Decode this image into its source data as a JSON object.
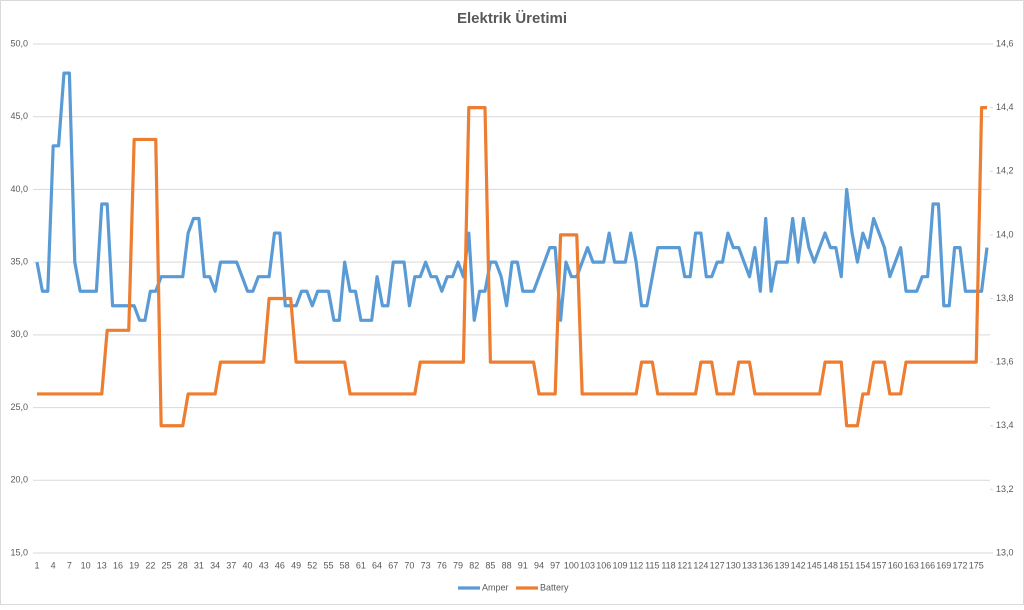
{
  "chart_data": {
    "type": "line",
    "title": "Elektrik Üretimi",
    "categories": [
      1,
      null,
      null,
      4,
      null,
      null,
      7,
      null,
      null,
      10,
      null,
      null,
      13,
      null,
      null,
      16,
      null,
      null,
      19,
      null,
      null,
      22,
      null,
      null,
      25,
      null,
      null,
      28,
      null,
      null,
      31,
      null,
      null,
      34,
      null,
      null,
      37,
      null,
      null,
      40,
      null,
      null,
      43,
      null,
      null,
      46,
      null,
      null,
      49,
      null,
      null,
      52,
      null,
      null,
      55,
      null,
      null,
      58,
      null,
      null,
      61,
      null,
      null,
      64,
      null,
      null,
      67,
      null,
      null,
      70,
      null,
      null,
      73,
      null,
      null,
      76,
      null,
      null,
      79,
      null,
      null,
      82,
      null,
      null,
      85,
      null,
      null,
      88,
      null,
      null,
      91,
      null,
      null,
      94,
      null,
      null,
      97,
      null,
      null,
      100,
      null,
      null,
      103,
      null,
      null,
      106,
      null,
      null,
      109,
      null,
      null,
      112,
      null,
      null,
      115,
      null,
      null,
      118,
      null,
      null,
      121,
      null,
      null,
      124,
      null,
      null,
      127,
      null,
      null,
      130,
      null,
      null,
      133,
      null,
      null,
      136,
      null,
      null,
      139,
      null,
      null,
      142,
      null,
      null,
      145,
      null,
      null,
      148,
      null,
      null,
      151,
      null,
      null,
      154,
      null,
      null,
      157,
      null,
      null,
      160,
      null,
      null,
      163,
      null,
      null,
      166,
      null,
      null,
      169,
      null,
      null,
      172,
      null,
      null,
      175,
      null,
      null
    ],
    "series": [
      {
        "name": "Amper",
        "color": "#5b9bd5",
        "axis": "y",
        "values": [
          35,
          33,
          33,
          43,
          43,
          48,
          48,
          35,
          33,
          33,
          33,
          33,
          39,
          39,
          32,
          32,
          32,
          32,
          32,
          31,
          31,
          33,
          33,
          34,
          34,
          34,
          34,
          34,
          37,
          38,
          38,
          34,
          34,
          33,
          35,
          35,
          35,
          35,
          34,
          33,
          33,
          34,
          34,
          34,
          37,
          37,
          32,
          32,
          32,
          33,
          33,
          32,
          33,
          33,
          33,
          31,
          31,
          35,
          33,
          33,
          31,
          31,
          31,
          34,
          32,
          32,
          35,
          35,
          35,
          32,
          34,
          34,
          35,
          34,
          34,
          33,
          34,
          34,
          35,
          34,
          37,
          31,
          33,
          33,
          35,
          35,
          34,
          32,
          35,
          35,
          33,
          33,
          33,
          34,
          35,
          36,
          36,
          31,
          35,
          34,
          34,
          35,
          36,
          35,
          35,
          35,
          37,
          35,
          35,
          35,
          37,
          35,
          32,
          32,
          34,
          36,
          36,
          36,
          36,
          36,
          34,
          34,
          37,
          37,
          34,
          34,
          35,
          35,
          37,
          36,
          36,
          35,
          34,
          36,
          33,
          38,
          33,
          35,
          35,
          35,
          38,
          35,
          38,
          36,
          35,
          36,
          37,
          36,
          36,
          34,
          40,
          37,
          35,
          37,
          36,
          38,
          37,
          36,
          34,
          35,
          36,
          33,
          33,
          33,
          34,
          34,
          39,
          39,
          32,
          32,
          36,
          36,
          33,
          33,
          33,
          33,
          36
        ]
      },
      {
        "name": "Battery",
        "color": "#ed7d31",
        "axis": "y2",
        "values": [
          13.5,
          13.5,
          13.5,
          13.5,
          13.5,
          13.5,
          13.5,
          13.5,
          13.5,
          13.5,
          13.5,
          13.5,
          13.5,
          13.7,
          13.7,
          13.7,
          13.7,
          13.7,
          14.3,
          14.3,
          14.3,
          14.3,
          14.3,
          13.4,
          13.4,
          13.4,
          13.4,
          13.4,
          13.5,
          13.5,
          13.5,
          13.5,
          13.5,
          13.5,
          13.6,
          13.6,
          13.6,
          13.6,
          13.6,
          13.6,
          13.6,
          13.6,
          13.6,
          13.8,
          13.8,
          13.8,
          13.8,
          13.8,
          13.6,
          13.6,
          13.6,
          13.6,
          13.6,
          13.6,
          13.6,
          13.6,
          13.6,
          13.6,
          13.5,
          13.5,
          13.5,
          13.5,
          13.5,
          13.5,
          13.5,
          13.5,
          13.5,
          13.5,
          13.5,
          13.5,
          13.5,
          13.6,
          13.6,
          13.6,
          13.6,
          13.6,
          13.6,
          13.6,
          13.6,
          13.6,
          14.4,
          14.4,
          14.4,
          14.4,
          13.6,
          13.6,
          13.6,
          13.6,
          13.6,
          13.6,
          13.6,
          13.6,
          13.6,
          13.5,
          13.5,
          13.5,
          13.5,
          14,
          14,
          14,
          14,
          13.5,
          13.5,
          13.5,
          13.5,
          13.5,
          13.5,
          13.5,
          13.5,
          13.5,
          13.5,
          13.5,
          13.6,
          13.6,
          13.6,
          13.5,
          13.5,
          13.5,
          13.5,
          13.5,
          13.5,
          13.5,
          13.5,
          13.6,
          13.6,
          13.6,
          13.5,
          13.5,
          13.5,
          13.5,
          13.6,
          13.6,
          13.6,
          13.5,
          13.5,
          13.5,
          13.5,
          13.5,
          13.5,
          13.5,
          13.5,
          13.5,
          13.5,
          13.5,
          13.5,
          13.5,
          13.6,
          13.6,
          13.6,
          13.6,
          13.4,
          13.4,
          13.4,
          13.5,
          13.5,
          13.6,
          13.6,
          13.6,
          13.5,
          13.5,
          13.5,
          13.6,
          13.6,
          13.6,
          13.6,
          13.6,
          13.6,
          13.6,
          13.6,
          13.6,
          13.6,
          13.6,
          13.6,
          13.6,
          13.6,
          14.4,
          14.4
        ]
      }
    ],
    "ylim": [
      15,
      50
    ],
    "yticks": [
      {
        "value": 15,
        "label": "15,0"
      },
      {
        "value": 20,
        "label": "20,0"
      },
      {
        "value": 25,
        "label": "25,0"
      },
      {
        "value": 30,
        "label": "30,0"
      },
      {
        "value": 35,
        "label": "35,0"
      },
      {
        "value": 40,
        "label": "40,0"
      },
      {
        "value": 45,
        "label": "45,0"
      },
      {
        "value": 50,
        "label": "50,0"
      }
    ],
    "y2lim": [
      13,
      14.6
    ],
    "y2ticks": [
      {
        "value": 13,
        "label": "13,0"
      },
      {
        "value": 13.2,
        "label": "13,2"
      },
      {
        "value": 13.4,
        "label": "13,4"
      },
      {
        "value": 13.6,
        "label": "13,6"
      },
      {
        "value": 13.8,
        "label": "13,8"
      },
      {
        "value": 14,
        "label": "14,0"
      },
      {
        "value": 14.2,
        "label": "14,2"
      },
      {
        "value": 14.4,
        "label": "14,4"
      },
      {
        "value": 14.6,
        "label": "14,6"
      }
    ],
    "grid": true,
    "legend": "bottom"
  }
}
